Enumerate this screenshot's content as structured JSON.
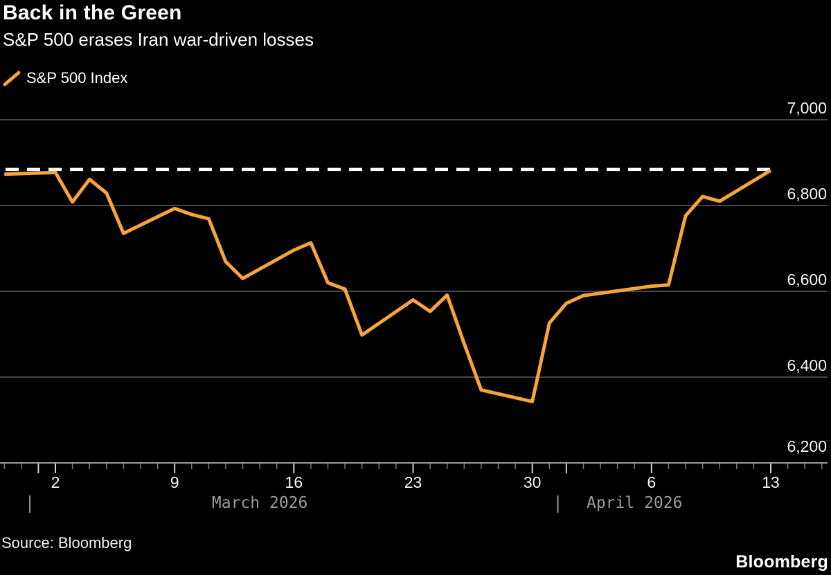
{
  "header": {
    "title": "Back in the Green",
    "subtitle": "S&P 500 erases Iran war-driven losses"
  },
  "legend": {
    "label": "S&P 500 Index"
  },
  "footer": {
    "source": "Source: Bloomberg",
    "logo": "Bloomberg"
  },
  "colors": {
    "background": "#000000",
    "series_line": "#F7A43B",
    "grid": "#474747",
    "axis_baseline": "#9b9b9b",
    "dashed_reference": "#ffffff",
    "tick_text": "#f5f5f5",
    "month_text": "#9a9a9a",
    "minor_tick": "#7a7a7a",
    "major_tick": "#d0d0d0"
  },
  "chart_data": {
    "type": "line",
    "title": "Back in the Green",
    "subtitle": "S&P 500 erases Iran war-driven losses",
    "legend_position": "top-left",
    "grid": "horizontal-only",
    "series": [
      {
        "name": "S&P 500 Index",
        "color": "#F7A43B",
        "points": [
          {
            "date": "2026-02-27",
            "value": 6873
          },
          {
            "date": "2026-03-02",
            "value": 6877
          },
          {
            "date": "2026-03-03",
            "value": 6808
          },
          {
            "date": "2026-03-04",
            "value": 6861
          },
          {
            "date": "2026-03-05",
            "value": 6829
          },
          {
            "date": "2026-03-06",
            "value": 6735
          },
          {
            "date": "2026-03-09",
            "value": 6793
          },
          {
            "date": "2026-03-10",
            "value": 6779
          },
          {
            "date": "2026-03-11",
            "value": 6769
          },
          {
            "date": "2026-03-12",
            "value": 6669
          },
          {
            "date": "2026-03-13",
            "value": 6630
          },
          {
            "date": "2026-03-16",
            "value": 6696
          },
          {
            "date": "2026-03-17",
            "value": 6713
          },
          {
            "date": "2026-03-18",
            "value": 6620
          },
          {
            "date": "2026-03-19",
            "value": 6605
          },
          {
            "date": "2026-03-20",
            "value": 6498
          },
          {
            "date": "2026-03-23",
            "value": 6580
          },
          {
            "date": "2026-03-24",
            "value": 6553
          },
          {
            "date": "2026-03-25",
            "value": 6591
          },
          {
            "date": "2026-03-26",
            "value": 6478
          },
          {
            "date": "2026-03-27",
            "value": 6370
          },
          {
            "date": "2026-03-30",
            "value": 6343
          },
          {
            "date": "2026-03-31",
            "value": 6526
          },
          {
            "date": "2026-04-01",
            "value": 6572
          },
          {
            "date": "2026-04-02",
            "value": 6590
          },
          {
            "date": "2026-04-06",
            "value": 6612
          },
          {
            "date": "2026-04-07",
            "value": 6615
          },
          {
            "date": "2026-04-08",
            "value": 6776
          },
          {
            "date": "2026-04-09",
            "value": 6821
          },
          {
            "date": "2026-04-10",
            "value": 6810
          },
          {
            "date": "2026-04-13",
            "value": 6882
          }
        ]
      }
    ],
    "reference_line": {
      "style": "dashed",
      "color": "#ffffff",
      "value": 6884
    },
    "y_axis": {
      "side": "right",
      "range_bottom": 6200,
      "range_top": 7045,
      "ticks": [
        {
          "value": 7000,
          "label": "7,000"
        },
        {
          "value": 6800,
          "label": "6,800"
        },
        {
          "value": 6600,
          "label": "6,600"
        },
        {
          "value": 6400,
          "label": "6,400"
        },
        {
          "value": 6200,
          "label": "6,200"
        }
      ]
    },
    "x_axis": {
      "tick_start": "2026-02-27",
      "tick_end": "2026-04-16",
      "tick_labels": [
        {
          "date": "2026-03-02",
          "label": "2"
        },
        {
          "date": "2026-03-09",
          "label": "9"
        },
        {
          "date": "2026-03-16",
          "label": "16"
        },
        {
          "date": "2026-03-23",
          "label": "23"
        },
        {
          "date": "2026-03-30",
          "label": "30"
        },
        {
          "date": "2026-04-06",
          "label": "6"
        },
        {
          "date": "2026-04-13",
          "label": "13"
        }
      ],
      "months": [
        {
          "label": "March 2026",
          "first_day": "2026-03-01",
          "label_center_day": "2026-03-14"
        },
        {
          "label": "April 2026",
          "first_day": "2026-04-01",
          "label_center_day": "2026-04-05"
        }
      ]
    }
  }
}
